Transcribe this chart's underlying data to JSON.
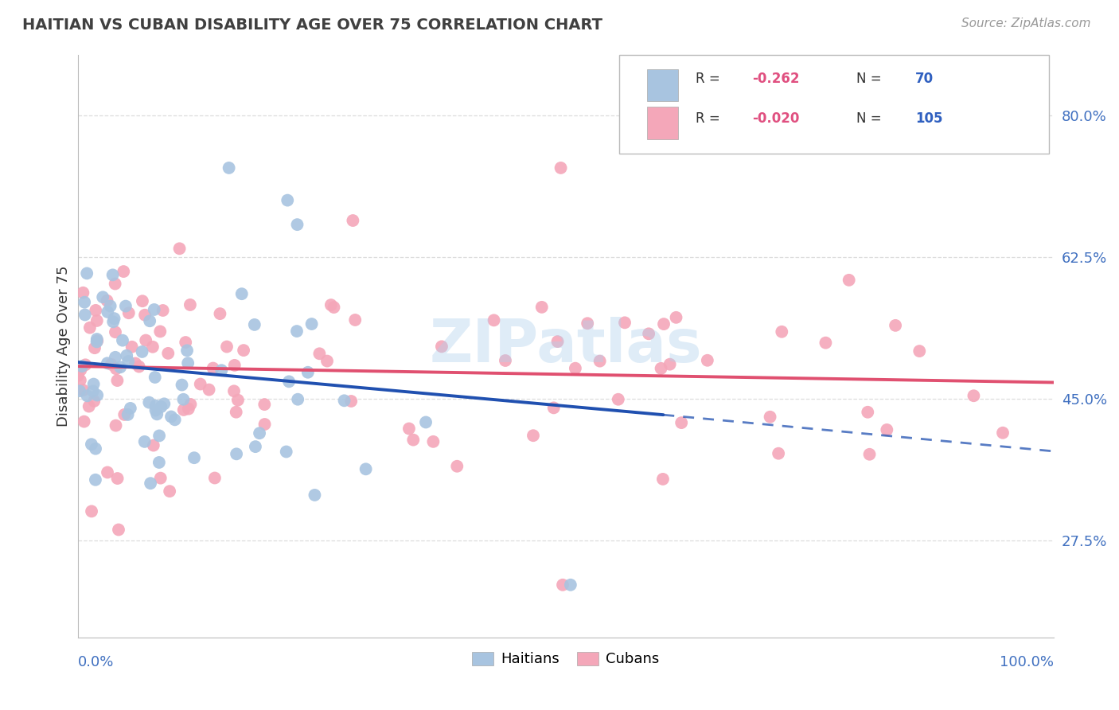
{
  "title": "HAITIAN VS CUBAN DISABILITY AGE OVER 75 CORRELATION CHART",
  "source": "Source: ZipAtlas.com",
  "ylabel": "Disability Age Over 75",
  "haitian_R": -0.262,
  "haitian_N": 70,
  "cuban_R": -0.02,
  "cuban_N": 105,
  "xlim": [
    0.0,
    1.0
  ],
  "ylim": [
    0.155,
    0.875
  ],
  "yticks": [
    0.275,
    0.45,
    0.625,
    0.8
  ],
  "ytick_labels": [
    "27.5%",
    "45.0%",
    "62.5%",
    "80.0%"
  ],
  "haitian_color": "#a8c4e0",
  "cuban_color": "#f4a7b9",
  "haitian_line_color": "#2050b0",
  "cuban_line_color": "#e05070",
  "background_color": "#ffffff",
  "grid_color": "#cccccc",
  "title_color": "#404040",
  "axis_label_color": "#4070c0",
  "legend_R_color": "#e05080",
  "legend_N_color": "#3060c0",
  "watermark": "ZIPatlas",
  "watermark_color": "#b0d0ec",
  "haitian_line_start_x": 0.0,
  "haitian_line_start_y": 0.495,
  "haitian_line_solid_end_x": 0.6,
  "haitian_line_solid_end_y": 0.43,
  "haitian_line_dash_end_x": 1.0,
  "haitian_line_dash_end_y": 0.385,
  "cuban_line_start_x": 0.0,
  "cuban_line_start_y": 0.49,
  "cuban_line_end_x": 1.0,
  "cuban_line_end_y": 0.47
}
